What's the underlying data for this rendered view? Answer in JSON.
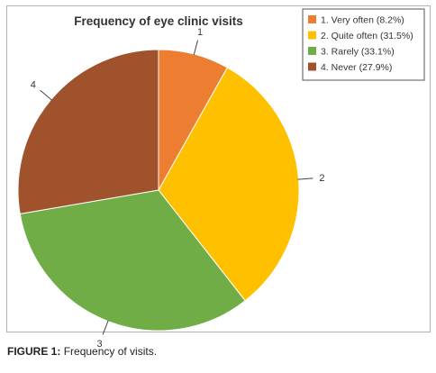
{
  "chart_data": {
    "type": "pie",
    "title": "Frequency of eye clinic visits",
    "categories": [
      "1. Very often (8.2%)",
      "2. Quite often (31.5%)",
      "3. Rarely (33.1%)",
      "4. Never (27.9%)"
    ],
    "slice_labels": [
      "1",
      "2",
      "3",
      "4"
    ],
    "values": [
      8.2,
      31.5,
      33.1,
      27.9
    ],
    "colors": [
      "#ED7D31",
      "#FFC000",
      "#70AD47",
      "#A0522D"
    ],
    "legend_position": "top-right"
  },
  "caption": {
    "label": "FIGURE 1:",
    "text": "Frequency of visits."
  }
}
